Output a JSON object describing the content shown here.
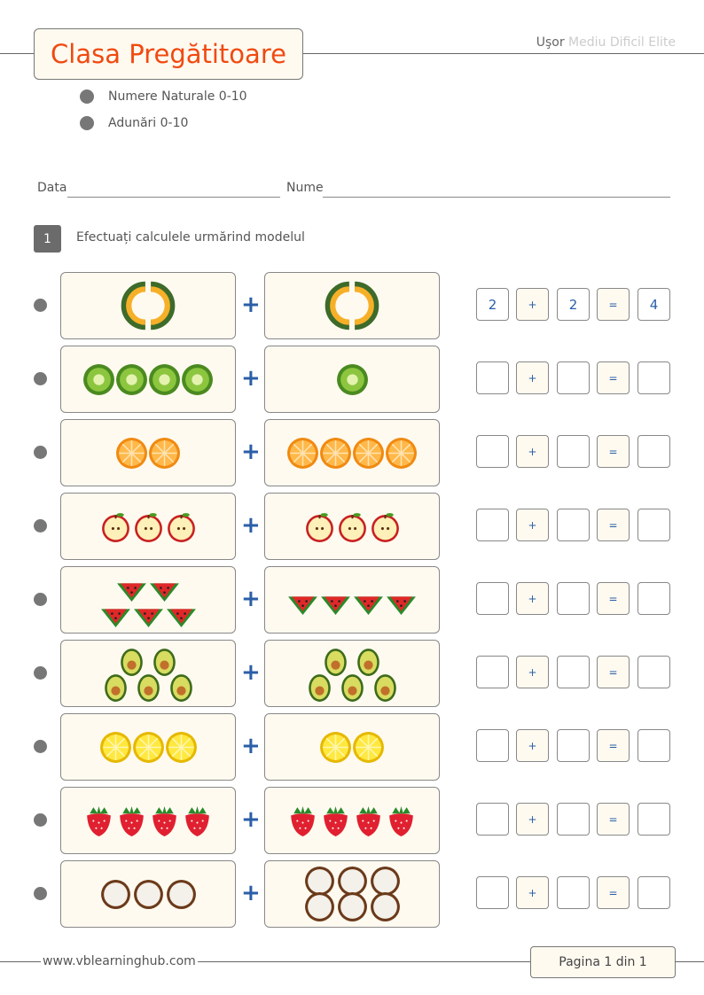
{
  "header": {
    "title": "Clasa Pregătitoare",
    "levels": [
      {
        "label": "Uşor",
        "active": true
      },
      {
        "label": "Mediu",
        "active": false
      },
      {
        "label": "Dificil",
        "active": false
      },
      {
        "label": "Elite",
        "active": false
      }
    ]
  },
  "topics": [
    "Numere Naturale 0-10",
    "Adunări 0-10"
  ],
  "fields": {
    "date_label": "Data",
    "name_label": "Nume"
  },
  "exercise": {
    "number": "1",
    "instruction": "Efectuați calculele urmărind modelul"
  },
  "rows": [
    {
      "fruit": "melon",
      "left": 2,
      "right": 2,
      "answer": [
        "2",
        "+",
        "2",
        "=",
        "4"
      ]
    },
    {
      "fruit": "kiwi",
      "left": 4,
      "right": 1,
      "answer": [
        "",
        "+",
        "",
        "=",
        ""
      ]
    },
    {
      "fruit": "orange",
      "left": 2,
      "right": 4,
      "answer": [
        "",
        "+",
        "",
        "=",
        ""
      ]
    },
    {
      "fruit": "apple",
      "left": 3,
      "right": 3,
      "answer": [
        "",
        "+",
        "",
        "=",
        ""
      ]
    },
    {
      "fruit": "watermelon",
      "left": 5,
      "right": 4,
      "answer": [
        "",
        "+",
        "",
        "=",
        ""
      ]
    },
    {
      "fruit": "avocado",
      "left": 5,
      "right": 5,
      "answer": [
        "",
        "+",
        "",
        "=",
        ""
      ]
    },
    {
      "fruit": "lemon",
      "left": 3,
      "right": 2,
      "answer": [
        "",
        "+",
        "",
        "=",
        ""
      ]
    },
    {
      "fruit": "strawberry",
      "left": 4,
      "right": 4,
      "answer": [
        "",
        "+",
        "",
        "=",
        ""
      ]
    },
    {
      "fruit": "coconut",
      "left": 3,
      "right": 6,
      "answer": [
        "",
        "+",
        "",
        "=",
        ""
      ]
    }
  ],
  "plus_sign": "+",
  "footer": {
    "url": "www.vblearninghub.com",
    "page": "Pagina 1 din 1"
  },
  "colors": {
    "title": "#f04a10",
    "accent": "#2a5ea8",
    "box_bg": "#fffaf0"
  }
}
